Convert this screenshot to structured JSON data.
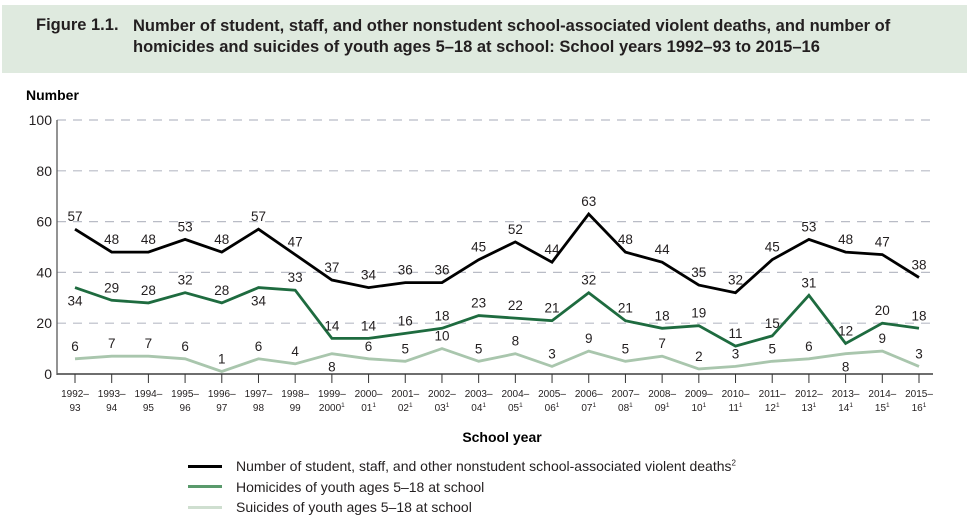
{
  "figure": {
    "number": "Figure 1.1.",
    "title": "Number of student, staff, and other nonstudent school-associated violent deaths, and number of homicides and suicides of youth ages 5–18 at school: School years 1992–93 to 2015–16"
  },
  "colors": {
    "title_band": "#dfeadf",
    "violent_deaths": "#000000",
    "homicides": "#1e6b3f",
    "suicides": "#a9c6ad",
    "grid": "#b9bcc6",
    "axis": "#595959"
  },
  "chart_data": {
    "type": "line",
    "title": "Number of student, staff, and other nonstudent school-associated violent deaths, and number of homicides and suicides of youth ages 5–18 at school: School years 1992–93 to 2015–16",
    "xlabel": "School year",
    "ylabel": "Number",
    "ylim": [
      0,
      100
    ],
    "yticks": [
      0,
      20,
      40,
      60,
      80,
      100
    ],
    "grid": "horizontal dashed",
    "legend_position": "bottom",
    "categories": [
      {
        "top": "1992–",
        "bottom": "93",
        "note": ""
      },
      {
        "top": "1993–",
        "bottom": "94",
        "note": ""
      },
      {
        "top": "1994–",
        "bottom": "95",
        "note": ""
      },
      {
        "top": "1995–",
        "bottom": "96",
        "note": ""
      },
      {
        "top": "1996–",
        "bottom": "97",
        "note": ""
      },
      {
        "top": "1997–",
        "bottom": "98",
        "note": ""
      },
      {
        "top": "1998–",
        "bottom": "99",
        "note": ""
      },
      {
        "top": "1999–",
        "bottom": "2000",
        "note": "1"
      },
      {
        "top": "2000–",
        "bottom": "01",
        "note": "1"
      },
      {
        "top": "2001–",
        "bottom": "02",
        "note": "1"
      },
      {
        "top": "2002–",
        "bottom": "03",
        "note": "1"
      },
      {
        "top": "2003–",
        "bottom": "04",
        "note": "1"
      },
      {
        "top": "2004–",
        "bottom": "05",
        "note": "1"
      },
      {
        "top": "2005–",
        "bottom": "06",
        "note": "1"
      },
      {
        "top": "2006–",
        "bottom": "07",
        "note": "1"
      },
      {
        "top": "2007–",
        "bottom": "08",
        "note": "1"
      },
      {
        "top": "2008–",
        "bottom": "09",
        "note": "1"
      },
      {
        "top": "2009–",
        "bottom": "10",
        "note": "1"
      },
      {
        "top": "2010–",
        "bottom": "11",
        "note": "1"
      },
      {
        "top": "2011–",
        "bottom": "12",
        "note": "1"
      },
      {
        "top": "2012–",
        "bottom": "13",
        "note": "1"
      },
      {
        "top": "2013–",
        "bottom": "14",
        "note": "1"
      },
      {
        "top": "2014–",
        "bottom": "15",
        "note": "1"
      },
      {
        "top": "2015–",
        "bottom": "16",
        "note": "1"
      }
    ],
    "series": [
      {
        "key": "violent_deaths",
        "name": "Number of student, staff, and other nonstudent school-associated violent deaths",
        "name_note": "2",
        "values": [
          57,
          48,
          48,
          53,
          48,
          57,
          47,
          37,
          34,
          36,
          36,
          45,
          52,
          44,
          63,
          48,
          44,
          35,
          32,
          45,
          53,
          48,
          47,
          38
        ]
      },
      {
        "key": "homicides",
        "name": "Homicides of youth ages 5–18 at school",
        "name_note": "",
        "values": [
          34,
          29,
          28,
          32,
          28,
          34,
          33,
          14,
          14,
          16,
          18,
          23,
          22,
          21,
          32,
          21,
          18,
          19,
          11,
          15,
          31,
          12,
          20,
          18
        ],
        "label_below": [
          true,
          false,
          false,
          false,
          false,
          true,
          false,
          false,
          false,
          false,
          false,
          false,
          false,
          false,
          false,
          false,
          false,
          false,
          false,
          false,
          false,
          false,
          false,
          false
        ]
      },
      {
        "key": "suicides",
        "name": "Suicides of youth ages 5–18 at school",
        "name_note": "",
        "values": [
          6,
          7,
          7,
          6,
          1,
          6,
          4,
          8,
          6,
          5,
          10,
          5,
          8,
          3,
          9,
          5,
          7,
          2,
          3,
          5,
          6,
          8,
          9,
          3
        ],
        "label_below": [
          false,
          false,
          false,
          false,
          false,
          false,
          false,
          true,
          false,
          false,
          false,
          false,
          false,
          false,
          false,
          false,
          false,
          false,
          false,
          false,
          false,
          true,
          false,
          false
        ]
      }
    ]
  }
}
